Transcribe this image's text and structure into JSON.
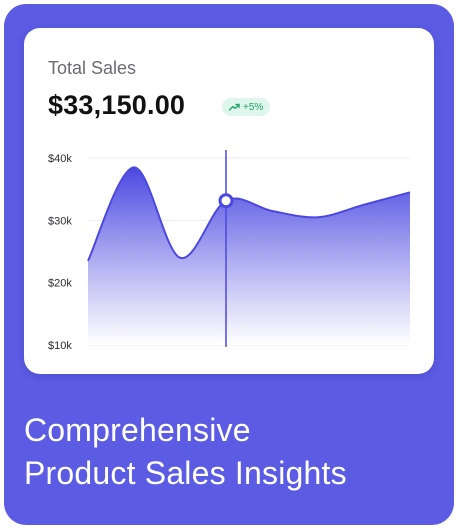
{
  "card": {
    "label": "Total Sales",
    "amount": "$33,150.00",
    "badge": {
      "icon": "trend-up-icon",
      "text": "+5%"
    }
  },
  "chart_data": {
    "type": "area",
    "y_ticks": [
      "$40k",
      "$30k",
      "$20k",
      "$10k"
    ],
    "ylim": [
      10000,
      40000
    ],
    "x": [
      0,
      1,
      2,
      3,
      4,
      5,
      6,
      7
    ],
    "y": [
      23500,
      38500,
      24000,
      33150,
      31500,
      30500,
      32500,
      34500
    ],
    "highlight_index": 3,
    "highlight_value": 33150,
    "grid": true,
    "colors": {
      "line": "#4b48e0",
      "fill_top": "#4b48e0",
      "fill_bottom": "#ffffff"
    }
  },
  "headline": {
    "line1": "Comprehensive",
    "line2": "Product Sales Insights"
  },
  "colors": {
    "background": "#5b5be3",
    "card": "#ffffff",
    "accent": "#4b48e0",
    "positive": "#24a36a",
    "positive_bg": "#dff6ec"
  }
}
